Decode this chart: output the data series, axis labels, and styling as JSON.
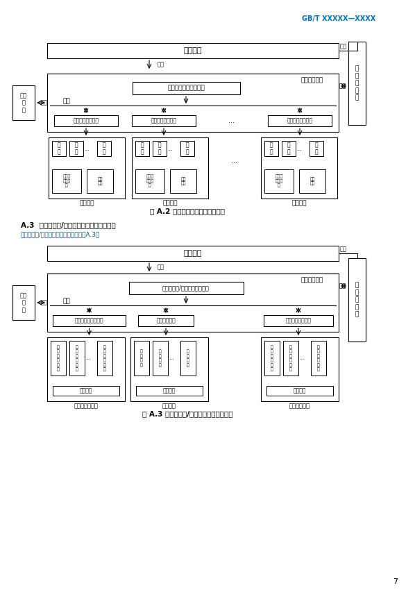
{
  "bg_color": "#ffffff",
  "header_text": "GB/T XXXXX—XXXX",
  "page_num": "7",
  "fig1_title": "图 A.2 液流电池管理典型通信架构",
  "fig2_title": "图 A.3 水电解制氢/燃料电池典型通信架构",
  "sec_title": "A.3  水电解制氢/燃料电池管理典型通信架构",
  "sec_desc": "水电解制氢/燃料电池典型通信架构见图A.3。",
  "monitor": "监控系统",
  "bms": "电池管理系统",
  "tongxin": "通信",
  "fire": "消防\n系\n统",
  "pcs": "储\n能\n变\n流\n器",
  "f1_sysmgr": "液流电池系统管理单元",
  "f1_modmgr": "电池模块管理单元",
  "f1_stack": "电\n堆",
  "f1_cycle": "电解液\n循环系\n统",
  "f1_aux": "辅助\n系统",
  "f1_module": "电池模块",
  "f2_sysmgr": "水电解制氢/燃料电油管理系统",
  "f2_mgr1": "水电解制氢管理单元",
  "f2_mgr2": "储氢管理单元",
  "f2_mgr3": "燃料电池管理单元",
  "f2_item1": "电\n解\n制\n氢\n系\n统",
  "f2_item2": "储\n氢\n瓶\n组",
  "f2_item3": "燃\n料\n电\n池\n系\n统",
  "f2_aux": "辅助系统",
  "f2_lbl1": "水电解制氢模块",
  "f2_lbl2": "储氢模块",
  "f2_lbl3": "燃料电池模块",
  "ellipsis": "..."
}
